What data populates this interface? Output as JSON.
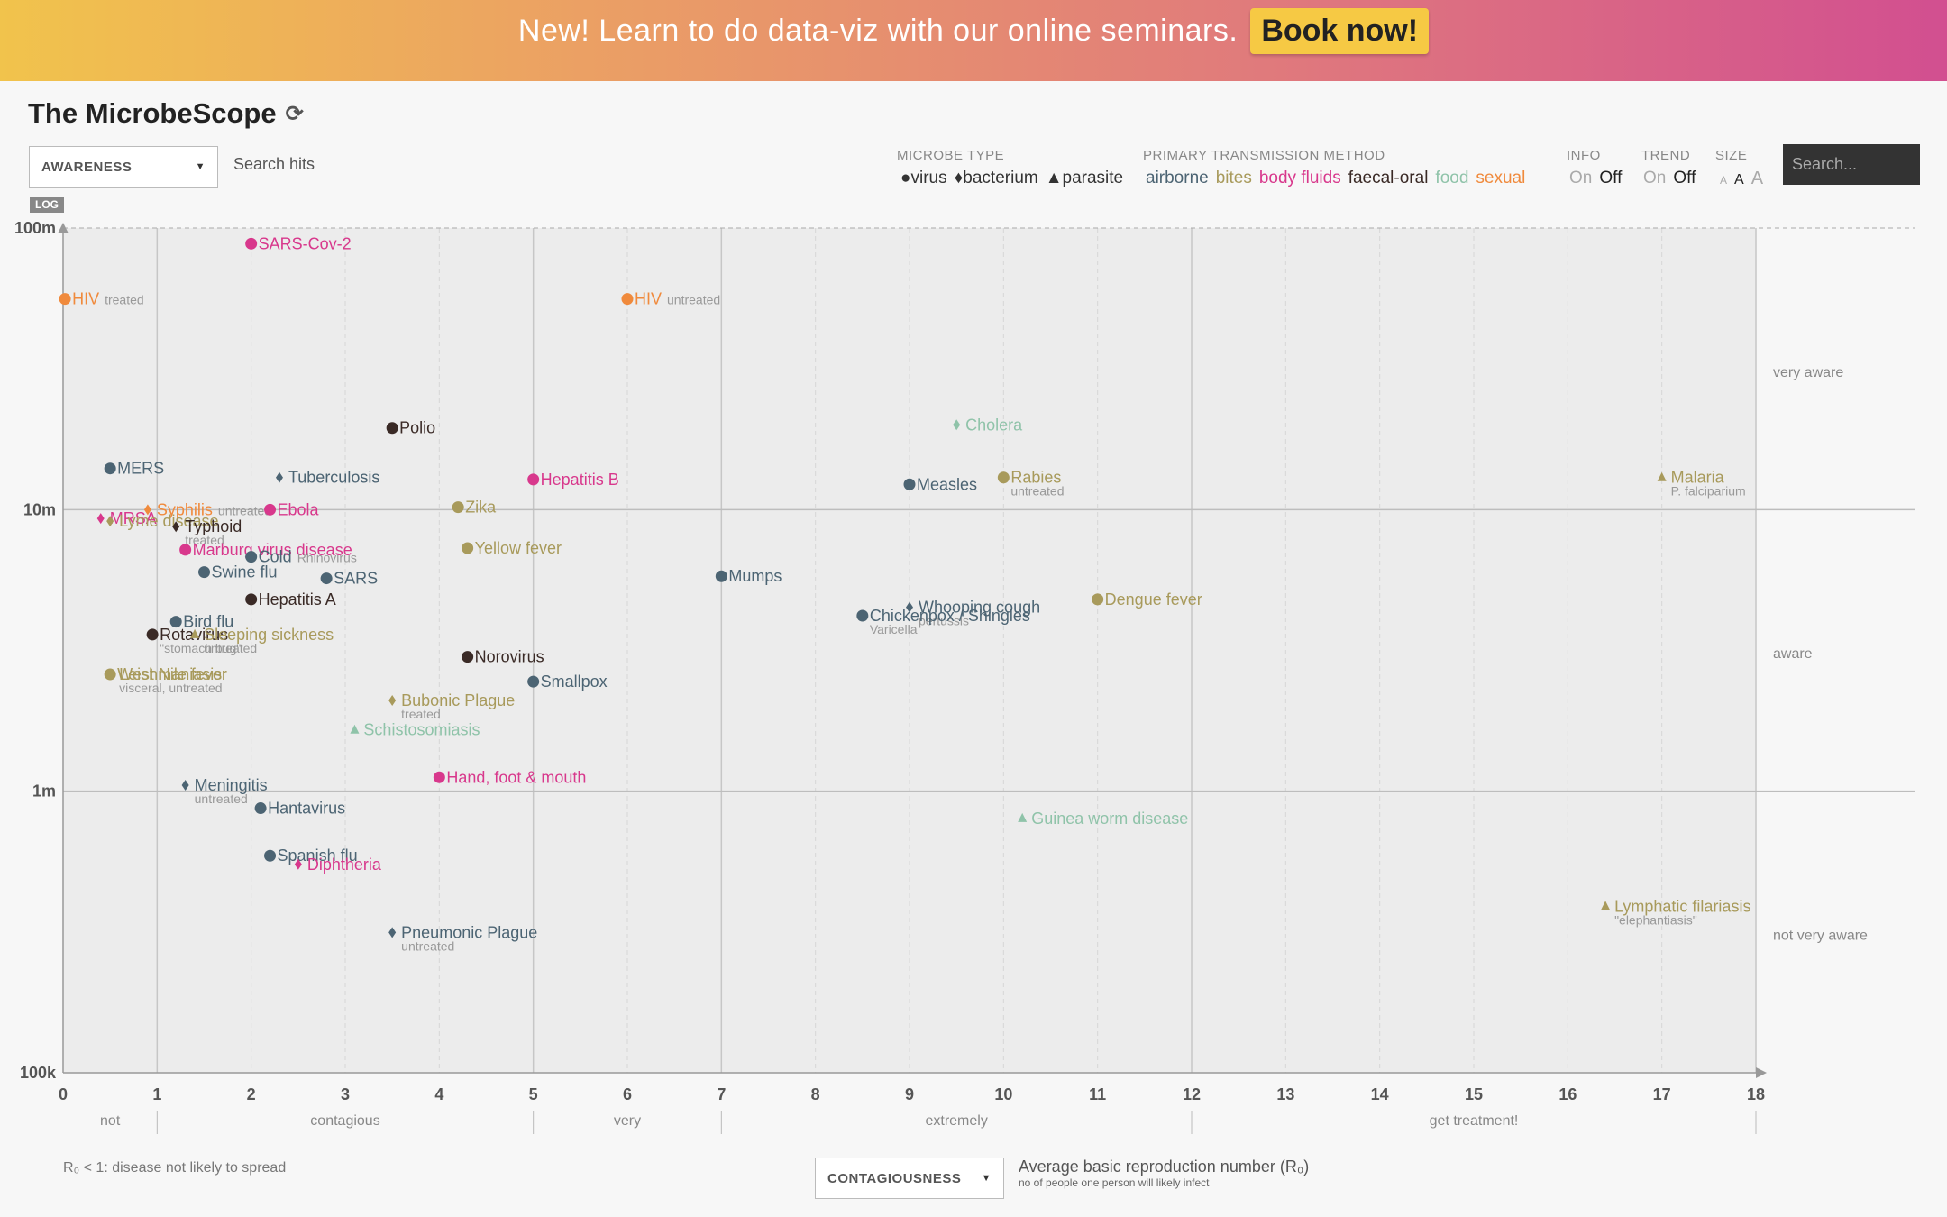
{
  "banner": {
    "text": "New! Learn to do data-viz with our online seminars.",
    "button": "Book now!"
  },
  "title": "The MicrobeScope",
  "controls": {
    "awareness_select": "AWARENESS",
    "search_hits": "Search hits",
    "microbe_type_label": "MICROBE TYPE",
    "microbe_types": [
      "●virus",
      "♦bacterium",
      "▲parasite"
    ],
    "transmission_label": "PRIMARY TRANSMISSION METHOD",
    "transmission": [
      {
        "label": "airborne",
        "color": "#4c6473"
      },
      {
        "label": "bites",
        "color": "#a89a5b"
      },
      {
        "label": "body fluids",
        "color": "#d8388c"
      },
      {
        "label": "faecal-oral",
        "color": "#3a2a26"
      },
      {
        "label": "food",
        "color": "#8fc3a9"
      },
      {
        "label": "sexual",
        "color": "#f08a3c"
      }
    ],
    "info_label": "INFO",
    "info_on": "On",
    "info_off": "Off",
    "trend_label": "TREND",
    "trend_on": "On",
    "trend_off": "Off",
    "size_label": "SIZE",
    "size_options": [
      "A",
      "A",
      "A"
    ],
    "search_placeholder": "Search...",
    "log_badge": "LOG",
    "contagiousness_select": "CONTAGIOUSNESS",
    "axis_desc_main": "Average basic reproduction number (R₀)",
    "axis_desc_sub": "no of people one person will likely infect",
    "bottom_note": "R₀ < 1: disease not likely to spread"
  },
  "chart_data": {
    "type": "scatter",
    "xlabel": "Average basic reproduction number (R₀)",
    "ylabel": "Search hits",
    "xlim": [
      0,
      18
    ],
    "ylim": [
      100000,
      100000000
    ],
    "yscale": "log",
    "x_ticks": [
      0,
      1,
      2,
      3,
      4,
      5,
      6,
      7,
      8,
      9,
      10,
      11,
      12,
      13,
      14,
      15,
      16,
      17,
      18
    ],
    "y_ticks": [
      {
        "value": 100000,
        "label": "100k"
      },
      {
        "value": 1000000,
        "label": "1m"
      },
      {
        "value": 10000000,
        "label": "10m"
      },
      {
        "value": 100000000,
        "label": "100m"
      }
    ],
    "x_bands": [
      {
        "label": "not",
        "from": 0,
        "to": 1
      },
      {
        "label": "contagious",
        "from": 1,
        "to": 5
      },
      {
        "label": "very",
        "from": 5,
        "to": 7
      },
      {
        "label": "extremely",
        "from": 7,
        "to": 12
      },
      {
        "label": "get treatment!",
        "from": 12,
        "to": 18
      }
    ],
    "y_bands": [
      {
        "label": "very aware",
        "value": 31000000
      },
      {
        "label": "aware",
        "value": 3100000
      },
      {
        "label": "not very aware",
        "value": 310000
      }
    ],
    "points": [
      {
        "name": "SARS-Cov-2",
        "note": "",
        "x": 2.0,
        "y": 88000000,
        "shape": "circle",
        "trans": "body fluids"
      },
      {
        "name": "HIV",
        "note": "treated",
        "x": 0.02,
        "y": 56000000,
        "shape": "circle",
        "trans": "sexual"
      },
      {
        "name": "HIV",
        "note": "untreated",
        "x": 6.0,
        "y": 56000000,
        "shape": "circle",
        "trans": "sexual"
      },
      {
        "name": "Polio",
        "note": "",
        "x": 3.5,
        "y": 19500000,
        "shape": "circle",
        "trans": "faecal-oral"
      },
      {
        "name": "Cholera",
        "note": "",
        "x": 9.5,
        "y": 20000000,
        "shape": "diamond",
        "trans": "food"
      },
      {
        "name": "MERS",
        "note": "",
        "x": 0.5,
        "y": 14000000,
        "shape": "circle",
        "trans": "airborne"
      },
      {
        "name": "Tuberculosis",
        "note": "",
        "x": 2.3,
        "y": 13000000,
        "shape": "diamond",
        "trans": "airborne"
      },
      {
        "name": "Hepatitis B",
        "note": "",
        "x": 5.0,
        "y": 12800000,
        "shape": "circle",
        "trans": "body fluids"
      },
      {
        "name": "Measles",
        "note": "",
        "x": 9.0,
        "y": 12300000,
        "shape": "circle",
        "trans": "airborne"
      },
      {
        "name": "Rabies",
        "note": "untreated",
        "x": 10.0,
        "y": 13000000,
        "shape": "circle",
        "trans": "bites"
      },
      {
        "name": "Malaria",
        "note": "P. falciparium",
        "x": 17.0,
        "y": 13000000,
        "shape": "triangle",
        "trans": "bites"
      },
      {
        "name": "Syphilis",
        "note": "untreated",
        "x": 0.9,
        "y": 10000000,
        "shape": "diamond",
        "trans": "sexual"
      },
      {
        "name": "Ebola",
        "note": "",
        "x": 2.2,
        "y": 10000000,
        "shape": "circle",
        "trans": "body fluids"
      },
      {
        "name": "Zika",
        "note": "",
        "x": 4.2,
        "y": 10200000,
        "shape": "circle",
        "trans": "bites"
      },
      {
        "name": "MRSA",
        "note": "",
        "x": 0.4,
        "y": 9300000,
        "shape": "diamond",
        "trans": "body fluids"
      },
      {
        "name": "Lyme disease",
        "note": "",
        "x": 0.5,
        "y": 9100000,
        "shape": "diamond",
        "trans": "bites"
      },
      {
        "name": "Typhoid",
        "note": "treated",
        "x": 1.2,
        "y": 8700000,
        "shape": "diamond",
        "trans": "faecal-oral"
      },
      {
        "name": "Marburg virus disease",
        "note": "",
        "x": 1.3,
        "y": 7200000,
        "shape": "circle",
        "trans": "body fluids"
      },
      {
        "name": "Yellow fever",
        "note": "",
        "x": 4.3,
        "y": 7300000,
        "shape": "circle",
        "trans": "bites"
      },
      {
        "name": "Cold",
        "note": "Rhinovirus",
        "x": 2.0,
        "y": 6800000,
        "shape": "circle",
        "trans": "airborne"
      },
      {
        "name": "Swine flu",
        "note": "",
        "x": 1.5,
        "y": 6000000,
        "shape": "circle",
        "trans": "airborne"
      },
      {
        "name": "SARS",
        "note": "",
        "x": 2.8,
        "y": 5700000,
        "shape": "circle",
        "trans": "airborne"
      },
      {
        "name": "Mumps",
        "note": "",
        "x": 7.0,
        "y": 5800000,
        "shape": "circle",
        "trans": "airborne"
      },
      {
        "name": "Hepatitis A",
        "note": "",
        "x": 2.0,
        "y": 4800000,
        "shape": "circle",
        "trans": "faecal-oral"
      },
      {
        "name": "Dengue fever",
        "note": "",
        "x": 11.0,
        "y": 4800000,
        "shape": "circle",
        "trans": "bites"
      },
      {
        "name": "Whooping cough",
        "note": "pertussis",
        "x": 9.0,
        "y": 4500000,
        "shape": "diamond",
        "trans": "airborne"
      },
      {
        "name": "Chickenpox / Shingles",
        "note": "Varicella",
        "x": 8.5,
        "y": 4200000,
        "shape": "circle",
        "trans": "airborne"
      },
      {
        "name": "Bird flu",
        "note": "",
        "x": 1.2,
        "y": 4000000,
        "shape": "circle",
        "trans": "airborne"
      },
      {
        "name": "Rotavirus",
        "note": "\"stomach bug\"",
        "x": 0.95,
        "y": 3600000,
        "shape": "circle",
        "trans": "faecal-oral"
      },
      {
        "name": "Sleeping sickness",
        "note": "untreated",
        "x": 1.4,
        "y": 3600000,
        "shape": "triangle",
        "trans": "bites"
      },
      {
        "name": "Norovirus",
        "note": "",
        "x": 4.3,
        "y": 3000000,
        "shape": "circle",
        "trans": "faecal-oral"
      },
      {
        "name": "Leishmaniasis",
        "note": "visceral, untreated",
        "x": 0.5,
        "y": 2600000,
        "shape": "triangle",
        "trans": "bites"
      },
      {
        "name": "West Nile fever",
        "note": "",
        "x": 0.5,
        "y": 2600000,
        "shape": "circle",
        "trans": "bites"
      },
      {
        "name": "Smallpox",
        "note": "",
        "x": 5.0,
        "y": 2450000,
        "shape": "circle",
        "trans": "airborne"
      },
      {
        "name": "Bubonic Plague",
        "note": "treated",
        "x": 3.5,
        "y": 2100000,
        "shape": "diamond",
        "trans": "bites"
      },
      {
        "name": "Schistosomiasis",
        "note": "",
        "x": 3.1,
        "y": 1650000,
        "shape": "triangle",
        "trans": "food"
      },
      {
        "name": "Meningitis",
        "note": "untreated",
        "x": 1.3,
        "y": 1050000,
        "shape": "diamond",
        "trans": "airborne"
      },
      {
        "name": "Hand, foot & mouth",
        "note": "",
        "x": 4.0,
        "y": 1120000,
        "shape": "circle",
        "trans": "body fluids"
      },
      {
        "name": "Hantavirus",
        "note": "",
        "x": 2.1,
        "y": 870000,
        "shape": "circle",
        "trans": "airborne"
      },
      {
        "name": "Guinea worm disease",
        "note": "",
        "x": 10.2,
        "y": 800000,
        "shape": "triangle",
        "trans": "food"
      },
      {
        "name": "Spanish flu",
        "note": "",
        "x": 2.2,
        "y": 590000,
        "shape": "circle",
        "trans": "airborne"
      },
      {
        "name": "Diphtheria",
        "note": "",
        "x": 2.5,
        "y": 550000,
        "shape": "diamond",
        "trans": "body fluids"
      },
      {
        "name": "Lymphatic filariasis",
        "note": "\"elephantiasis\"",
        "x": 16.4,
        "y": 390000,
        "shape": "triangle",
        "trans": "bites"
      },
      {
        "name": "Pneumonic Plague",
        "note": "untreated",
        "x": 3.5,
        "y": 315000,
        "shape": "diamond",
        "trans": "airborne"
      }
    ]
  }
}
